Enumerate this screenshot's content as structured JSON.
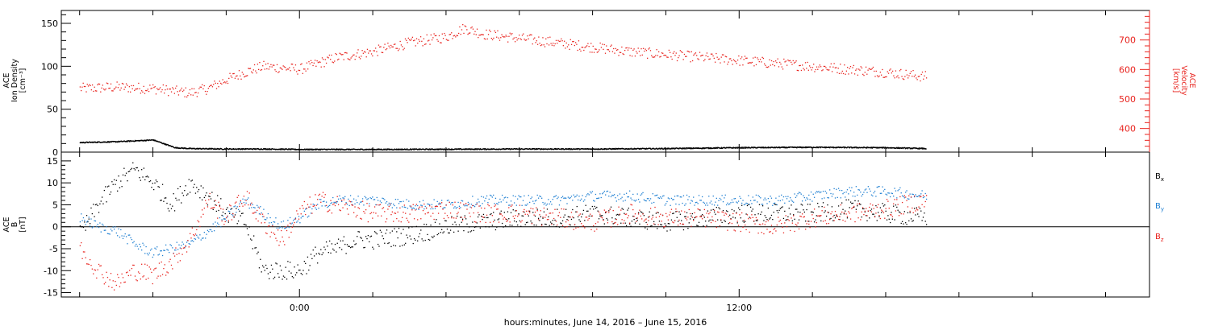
{
  "chart_data": [
    {
      "type": "scatter",
      "panel": "top",
      "y_left": {
        "label_lines": [
          "ACE",
          "Ion Density",
          "[cm⁻³]"
        ],
        "range": [
          0,
          165
        ],
        "ticks": [
          "0",
          "50",
          "100",
          "150"
        ]
      },
      "y_right": {
        "label_lines": [
          "ACE",
          "Velocity",
          "[km/s]"
        ],
        "range": [
          320,
          800
        ],
        "ticks": [
          "400",
          "500",
          "600",
          "700"
        ],
        "color": "#e8231e"
      },
      "series": [
        {
          "axis": "left",
          "color": "#000000",
          "x": [
            -6,
            -5,
            -4.5,
            -4,
            -3.4,
            -3,
            -2,
            -1,
            0,
            2,
            4,
            6,
            8,
            10,
            12,
            14,
            16,
            17.1
          ],
          "y": [
            11,
            12,
            13,
            14,
            5,
            4,
            3.5,
            3.5,
            3,
            3,
            3.2,
            3.5,
            3.5,
            4,
            5,
            5.5,
            5,
            4
          ]
        },
        {
          "axis": "right",
          "color": "#e8231e",
          "x": [
            -6,
            -5,
            -4,
            -3,
            -2.5,
            -2,
            -1.5,
            -1,
            -0.5,
            0,
            0.5,
            1,
            2,
            3,
            4,
            4.5,
            5,
            6,
            7,
            8,
            9,
            10,
            11,
            12,
            13,
            14,
            15,
            16,
            17.1
          ],
          "y": [
            535,
            540,
            535,
            520,
            535,
            565,
            590,
            610,
            605,
            600,
            620,
            640,
            660,
            690,
            710,
            740,
            720,
            705,
            690,
            675,
            660,
            650,
            640,
            630,
            620,
            610,
            600,
            590,
            575
          ]
        }
      ]
    },
    {
      "type": "scatter",
      "panel": "bottom",
      "y_left": {
        "label_lines": [
          "ACE",
          "B",
          "[nT]"
        ],
        "range": [
          -16,
          17
        ],
        "ticks": [
          "-15",
          "-10",
          "-5",
          "0",
          "5",
          "10",
          "15"
        ]
      },
      "series": [
        {
          "name": "Bx",
          "color": "#000000",
          "x": [
            -6,
            -5.5,
            -5,
            -4.5,
            -4,
            -3.5,
            -3,
            -2.5,
            -2,
            -1.5,
            -1,
            -0.5,
            0,
            0.5,
            1,
            1.5,
            2,
            3,
            4,
            5,
            6,
            7,
            8,
            9,
            10,
            11,
            12,
            13,
            14,
            15,
            16,
            17.1
          ],
          "y": [
            -2,
            5,
            10,
            13,
            10,
            5,
            10,
            7,
            3,
            1,
            -10,
            -10,
            -10,
            -6,
            -5,
            -3,
            -3,
            -2,
            0,
            1,
            2,
            2,
            3,
            2,
            1,
            2,
            3,
            3,
            3,
            4,
            3,
            2
          ]
        },
        {
          "name": "By",
          "color": "#1e7fd2",
          "x": [
            -6,
            -5.5,
            -5,
            -4.5,
            -4,
            -3.5,
            -3,
            -2.5,
            -2,
            -1.5,
            -1,
            -0.5,
            0,
            0.5,
            1,
            2,
            3,
            4,
            5,
            6,
            7,
            8,
            9,
            10,
            11,
            12,
            13,
            14,
            15,
            16,
            17.1
          ],
          "y": [
            2,
            0,
            -1,
            -4,
            -6,
            -5,
            -4,
            -1,
            2,
            6,
            3,
            0,
            2,
            5,
            6,
            6,
            5,
            5,
            6,
            6,
            6,
            7,
            7,
            6,
            6,
            6,
            6,
            7,
            8,
            8,
            7
          ]
        },
        {
          "name": "Bz",
          "color": "#e8231e",
          "x": [
            -6,
            -5.5,
            -5,
            -4.5,
            -4,
            -3.5,
            -3,
            -2.5,
            -2,
            -1.5,
            -1,
            -0.5,
            0,
            0.5,
            1,
            2,
            3,
            4,
            5,
            6,
            7,
            8,
            9,
            10,
            11,
            12,
            13,
            14,
            15,
            16,
            17.1
          ],
          "y": [
            -5,
            -10,
            -13,
            -10,
            -11,
            -8,
            -3,
            6,
            2,
            7,
            1,
            -3,
            3,
            6,
            5,
            3,
            3,
            4,
            3,
            3,
            2,
            1,
            3,
            2,
            2,
            1,
            0,
            2,
            3,
            4,
            6
          ]
        }
      ],
      "legend": [
        {
          "base": "B",
          "sub": "x",
          "color": "#000000"
        },
        {
          "base": "B",
          "sub": "y",
          "color": "#1e7fd2"
        },
        {
          "base": "B",
          "sub": "z",
          "color": "#e8231e"
        }
      ]
    }
  ],
  "x_axis": {
    "range_hours": [
      -6.5,
      23.2
    ],
    "major_ticks": [
      {
        "hours": 0,
        "label": "0:00"
      },
      {
        "hours": 12,
        "label": "12:00"
      }
    ],
    "minor_step_hours": 2,
    "label": "hours:minutes, June 14, 2016 – June 15, 2016"
  }
}
